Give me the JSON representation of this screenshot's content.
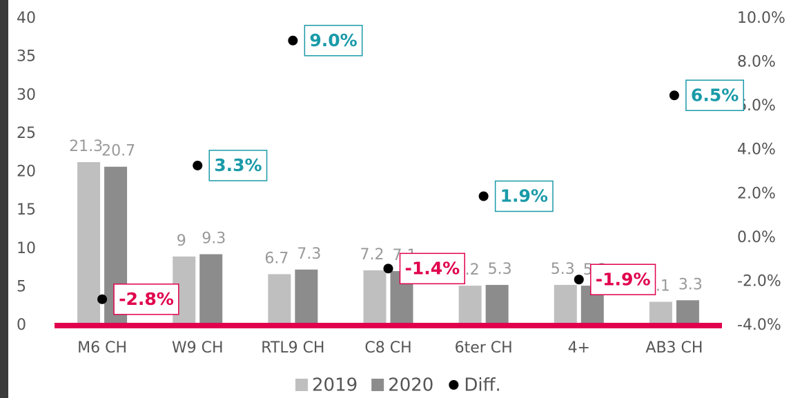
{
  "chart_data": {
    "type": "bar",
    "categories": [
      "M6 CH",
      "W9 CH",
      "RTL9 CH",
      "C8 CH",
      "6ter CH",
      "4+",
      "AB3 CH"
    ],
    "series": [
      {
        "name": "2019",
        "color": "#bfbfbf",
        "values": [
          21.3,
          9,
          6.7,
          7.2,
          5.2,
          5.3,
          3.1
        ]
      },
      {
        "name": "2020",
        "color": "#8c8c8c",
        "values": [
          20.7,
          9.3,
          7.3,
          7.1,
          5.3,
          5.2,
          3.3
        ]
      },
      {
        "name": "Diff.",
        "type": "scatter",
        "axis": "y2",
        "color": "#000000",
        "values": [
          -2.8,
          3.3,
          9.0,
          -1.4,
          1.9,
          -1.9,
          6.5
        ],
        "value_labels": [
          "-2.8%",
          "3.3%",
          "9.0%",
          "-1.4%",
          "1.9%",
          "-1.9%",
          "6.5%"
        ]
      }
    ],
    "ylim": [
      0,
      40
    ],
    "yticks": [
      0,
      5,
      10,
      15,
      20,
      25,
      30,
      35,
      40
    ],
    "y2lim": [
      -4,
      10
    ],
    "y2ticks": [
      {
        "value": -4,
        "label": "-4.0%"
      },
      {
        "value": -2,
        "label": "-2.0%"
      },
      {
        "value": 0,
        "label": "0.0%"
      },
      {
        "value": 2,
        "label": "2.0%"
      },
      {
        "value": 4,
        "label": "4.0%"
      },
      {
        "value": 6,
        "label": "6.0%"
      },
      {
        "value": 8,
        "label": "8.0%"
      },
      {
        "value": 10,
        "label": "10.0%"
      }
    ],
    "label_colors": {
      "positive": "#1a9aa8",
      "negative": "#e0004d"
    },
    "baseline_color": "#e0004d",
    "legend": "bottom"
  }
}
